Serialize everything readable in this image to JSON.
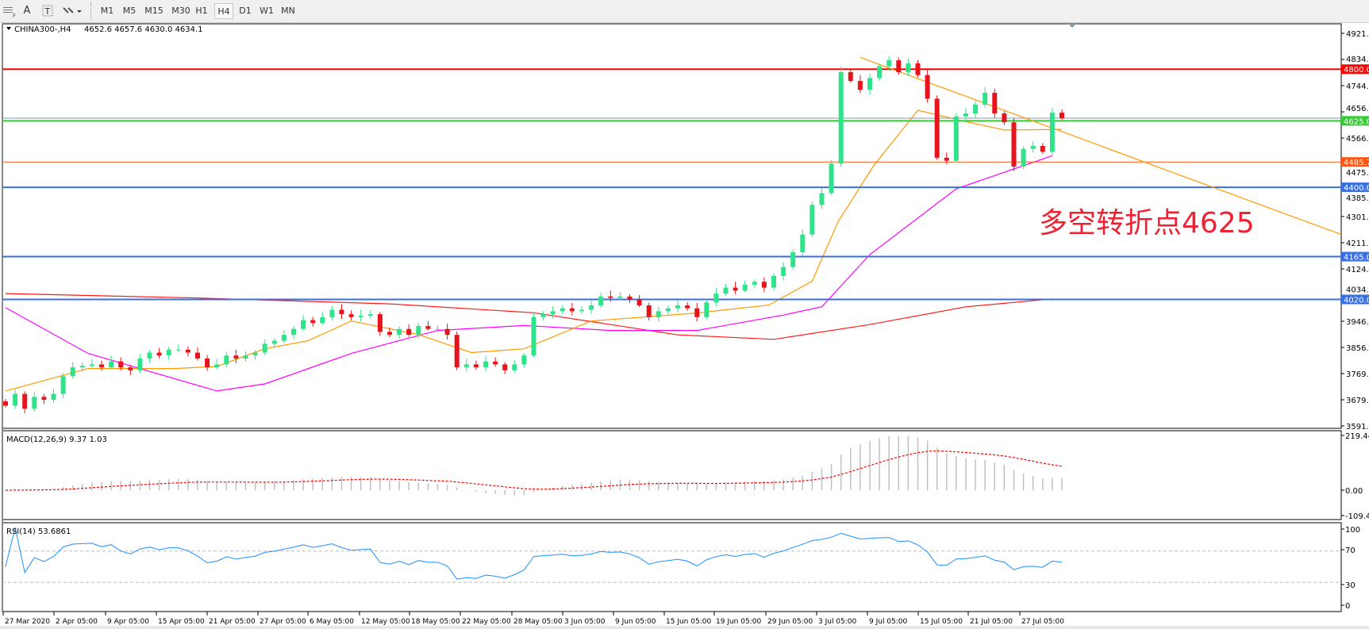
{
  "toolbar": {
    "icons": [
      "period-separators-icon",
      "text-A-icon",
      "text-label-icon",
      "drawing-tools-icon"
    ],
    "text_tool": "A",
    "timeframes": [
      "M1",
      "M5",
      "M15",
      "M30",
      "H1",
      "H4",
      "D1",
      "W1",
      "MN"
    ],
    "active_timeframe": "H4"
  },
  "chart": {
    "symbol_label": "CHINA300-,H4",
    "ohlc_label": "4652.6 4657.6 4630.0 4634.1",
    "annotation": "多空转折点4625",
    "annotation_color": "#ee2233",
    "bull_color": "#2fe38a",
    "bear_color": "#e8141c",
    "price_axis": [
      "4921.5",
      "4834.0",
      "4744.0",
      "4656.5",
      "4566.5",
      "4475.5",
      "4385.0",
      "4301.5",
      "4211.5",
      "4124.0",
      "4034.0",
      "3946.5",
      "3856.5",
      "3769.0",
      "3679.0",
      "3591.5"
    ],
    "price_range": [
      3591.5,
      4921.5
    ],
    "levels": [
      {
        "price": 4800.0,
        "label": "4800.0",
        "color": "#ff0000"
      },
      {
        "price": 4625.0,
        "label": "4625.0",
        "color": "#33cc33"
      },
      {
        "price": 4485.7,
        "label": "4485.7",
        "color": "#ff5511"
      },
      {
        "price": 4400.0,
        "label": "4400.0",
        "color": "#3a6fe0"
      },
      {
        "price": 4165.0,
        "label": "4165.0",
        "color": "#3a6fe0"
      },
      {
        "price": 4020.0,
        "label": "4020.0",
        "color": "#3a6fe0"
      }
    ],
    "current_price": 4634.1,
    "trendline": {
      "from": [
        89,
        4840
      ],
      "to": [
        132,
        4325
      ],
      "color": "#ff9900"
    },
    "closes": [
      3660,
      3700,
      3650,
      3690,
      3680,
      3700,
      3760,
      3790,
      3795,
      3800,
      3790,
      3810,
      3790,
      3780,
      3820,
      3840,
      3830,
      3850,
      3850,
      3840,
      3820,
      3790,
      3800,
      3830,
      3820,
      3830,
      3840,
      3870,
      3880,
      3900,
      3920,
      3950,
      3940,
      3960,
      3985,
      3970,
      3960,
      3965,
      3970,
      3910,
      3900,
      3920,
      3900,
      3930,
      3920,
      3920,
      3900,
      3790,
      3800,
      3790,
      3810,
      3800,
      3780,
      3800,
      3830,
      3960,
      3970,
      3980,
      3990,
      3980,
      3985,
      4000,
      4030,
      4025,
      4030,
      4020,
      4000,
      3960,
      3980,
      3990,
      4000,
      3990,
      3960,
      4010,
      4040,
      4060,
      4050,
      4070,
      4080,
      4060,
      4100,
      4130,
      4180,
      4240,
      4340,
      4380,
      4480,
      4790,
      4760,
      4730,
      4770,
      4810,
      4830,
      4790,
      4820,
      4780,
      4700,
      4500,
      4490,
      4640,
      4650,
      4680,
      4720,
      4650,
      4620,
      4470,
      4530,
      4540,
      4520,
      4652.6,
      4634.1
    ],
    "ma_fast": {
      "color": "#ff9900",
      "points": [
        [
          0,
          3710
        ],
        [
          8.6,
          3786
        ],
        [
          17.6,
          3786
        ],
        [
          22,
          3793
        ],
        [
          27,
          3853
        ],
        [
          31.5,
          3880
        ],
        [
          36,
          3947
        ],
        [
          43,
          3901
        ],
        [
          48.5,
          3840
        ],
        [
          54,
          3853
        ],
        [
          61,
          3947
        ],
        [
          72,
          3974
        ],
        [
          79.5,
          4001
        ],
        [
          84,
          4082
        ],
        [
          86.7,
          4284
        ],
        [
          90.4,
          4473
        ],
        [
          95,
          4661
        ],
        [
          99.5,
          4626
        ],
        [
          104,
          4594
        ],
        [
          110,
          4596
        ]
      ]
    },
    "ma_mid": {
      "color": "#ff00ff",
      "points": [
        [
          0,
          3992
        ],
        [
          8.6,
          3837
        ],
        [
          22,
          3710
        ],
        [
          27,
          3734
        ],
        [
          36,
          3837
        ],
        [
          45,
          3915
        ],
        [
          54,
          3932
        ],
        [
          63,
          3915
        ],
        [
          72,
          3915
        ],
        [
          81,
          3967
        ],
        [
          85,
          3995
        ],
        [
          90,
          4172
        ],
        [
          99,
          4395
        ],
        [
          109,
          4507
        ]
      ]
    },
    "ma_slow": {
      "color": "#ff1a1a",
      "points": [
        [
          0,
          4040
        ],
        [
          20,
          4025
        ],
        [
          40,
          4005
        ],
        [
          55,
          3975
        ],
        [
          70,
          3900
        ],
        [
          80,
          3885
        ],
        [
          90,
          3935
        ],
        [
          100,
          3995
        ],
        [
          109,
          4022
        ]
      ]
    },
    "time_axis": [
      "27 Mar 2020",
      "2 Apr 05:00",
      "9 Apr 05:00",
      "15 Apr 05:00",
      "21 Apr 05:00",
      "27 Apr 05:00",
      "6 May 05:00",
      "12 May 05:00",
      "18 May 05:00",
      "22 May 05:00",
      "28 May 05:00",
      "3 Jun 05:00",
      "9 Jun 05:00",
      "15 Jun 05:00",
      "19 Jun 05:00",
      "29 Jun 05:00",
      "3 Jul 05:00",
      "9 Jul 05:00",
      "15 Jul 05:00",
      "21 Jul 05:00",
      "27 Jul 05:00"
    ]
  },
  "macd": {
    "label": "MACD(12,26,9) 9.37 1.03",
    "axis": [
      "219.44",
      "0.00",
      "-109.44"
    ],
    "range": [
      -109.44,
      219.44
    ],
    "hist_color": "#c0c0c0",
    "signal_color": "#ff0000"
  },
  "rsi": {
    "label": "RSI(14) 53.6861",
    "axis": [
      "100",
      "70",
      "30",
      "0"
    ],
    "levels": [
      70,
      30
    ],
    "color": "#1e90ff"
  }
}
